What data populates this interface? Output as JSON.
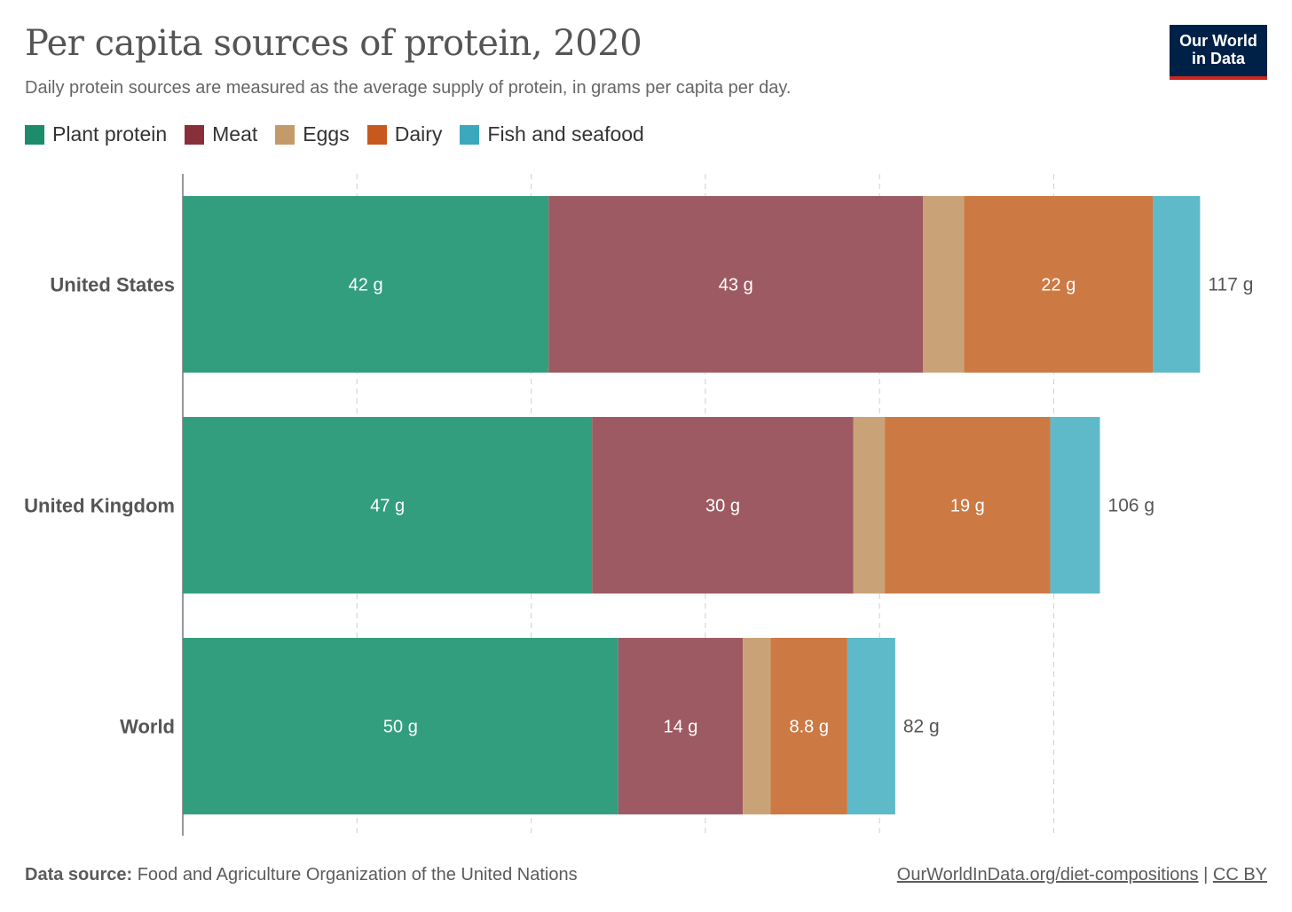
{
  "header": {
    "title": "Per capita sources of protein, 2020",
    "subtitle": "Daily protein sources are measured as the average supply of protein, in grams per capita per day.",
    "logo_line1": "Our World",
    "logo_line2": "in Data"
  },
  "footer": {
    "source_label": "Data source:",
    "source_text": "Food and Agriculture Organization of the United Nations",
    "link_text": "OurWorldInData.org/diet-compositions",
    "separator": "|",
    "license": "CC BY"
  },
  "colors": {
    "plant": "#339e7d",
    "meat": "#9e5a62",
    "eggs": "#c9a377",
    "dairy": "#cd7944",
    "fish": "#5eb9c9",
    "legend_plant": "#1c8c6b",
    "legend_meat": "#883039",
    "legend_eggs": "#c49a69",
    "legend_dairy": "#c65a1e",
    "legend_fish": "#3ca8bd"
  },
  "chart_data": {
    "type": "bar",
    "orientation": "horizontal",
    "stacked": true,
    "title": "Per capita sources of protein, 2020",
    "unit": "g",
    "xlim": [
      0,
      117
    ],
    "grid": true,
    "categories": [
      "United States",
      "United Kingdom",
      "World"
    ],
    "totals": [
      117,
      106,
      82
    ],
    "total_labels": [
      "117 g",
      "106 g",
      "82 g"
    ],
    "series": [
      {
        "name": "Plant protein",
        "key": "plant",
        "values": [
          42,
          47,
          50
        ],
        "labels": [
          "42 g",
          "47 g",
          "50 g"
        ]
      },
      {
        "name": "Meat",
        "key": "meat",
        "values": [
          43,
          30,
          14.3
        ],
        "labels": [
          "43 g",
          "30 g",
          "14 g"
        ]
      },
      {
        "name": "Eggs",
        "key": "eggs",
        "values": [
          4.7,
          3.6,
          3.2
        ],
        "labels": [
          "",
          "",
          ""
        ]
      },
      {
        "name": "Dairy",
        "key": "dairy",
        "values": [
          21.7,
          19,
          8.8
        ],
        "labels": [
          "22 g",
          "19 g",
          "8.8 g"
        ]
      },
      {
        "name": "Fish and seafood",
        "key": "fish",
        "values": [
          5.4,
          5.7,
          5.5
        ],
        "labels": [
          "",
          "",
          ""
        ]
      }
    ]
  }
}
